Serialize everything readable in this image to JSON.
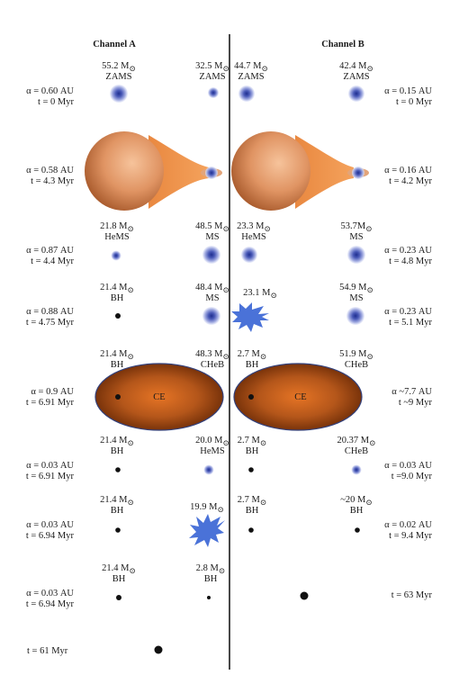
{
  "channels": [
    {
      "header": "Channel A",
      "stages": [
        {
          "params_a": "α = 0.60 AU",
          "params_t": "t = 0 Myr",
          "star1": {
            "mass": "55.2 M",
            "type": "ZAMS"
          },
          "star2": {
            "mass": "32.5 M",
            "type": "ZAMS"
          }
        },
        {
          "params_a": "α = 0.58 AU",
          "params_t": "t = 4.3 Myr"
        },
        {
          "params_a": "α = 0.87 AU",
          "params_t": "t = 4.4 Myr",
          "star1": {
            "mass": "21.8 M",
            "type": "HeMS"
          },
          "star2": {
            "mass": "48.5 M",
            "type": "MS"
          }
        },
        {
          "params_a": "α = 0.88 AU",
          "params_t": "t = 4.75 Myr",
          "star1": {
            "mass": "21.4 M",
            "type": "BH"
          },
          "star2": {
            "mass": "48.4 M",
            "type": "MS"
          }
        },
        {
          "params_a": "α = 0.9 AU",
          "params_t": "t = 6.91 Myr",
          "star1": {
            "mass": "21.4 M",
            "type": "BH"
          },
          "star2": {
            "mass": "48.3 M",
            "type": "CHeB"
          },
          "ce": "CE"
        },
        {
          "params_a": "α = 0.03 AU",
          "params_t": "t = 6.91 Myr",
          "star1": {
            "mass": "21.4 M",
            "type": "BH"
          },
          "star2": {
            "mass": "20.0 M",
            "type": "HeMS"
          }
        },
        {
          "params_a": "α = 0.03 AU",
          "params_t": "t = 6.94 Myr",
          "star1": {
            "mass": "21.4 M",
            "type": "BH"
          },
          "star2": {
            "mass": "19.9 M",
            "type": ""
          }
        },
        {
          "params_a": "α = 0.03 AU",
          "params_t": "t = 6.94 Myr",
          "star1": {
            "mass": "21.4 M",
            "type": "BH"
          },
          "star2": {
            "mass": "2.8 M",
            "type": "BH"
          }
        },
        {
          "params_t": "t = 61 Myr"
        }
      ]
    },
    {
      "header": "Channel B",
      "stages": [
        {
          "params_a": "α = 0.15 AU",
          "params_t": "t = 0 Myr",
          "star1": {
            "mass": "44.7 M",
            "type": "ZAMS"
          },
          "star2": {
            "mass": "42.4 M",
            "type": "ZAMS"
          }
        },
        {
          "params_a": "α = 0.16 AU",
          "params_t": "t = 4.2 Myr"
        },
        {
          "params_a": "α = 0.23 AU",
          "params_t": "t = 4.8 Myr",
          "star1": {
            "mass": "23.3 M",
            "type": "HeMS"
          },
          "star2": {
            "mass": "53.7M",
            "type": "MS"
          }
        },
        {
          "params_a": "α = 0.23 AU",
          "params_t": "t = 5.1 Myr",
          "star1": {
            "mass": "23.1 M",
            "type": ""
          },
          "star2": {
            "mass": "54.9 M",
            "type": "MS"
          }
        },
        {
          "params_a": "α ~7.7 AU",
          "params_t": "t ~9 Myr",
          "star1": {
            "mass": "2.7 M",
            "type": "BH"
          },
          "star2": {
            "mass": "51.9 M",
            "type": "CHeB"
          },
          "ce": "CE"
        },
        {
          "params_a": "α = 0.03 AU",
          "params_t": "t =9.0 Myr",
          "star1": {
            "mass": "2.7 M",
            "type": "BH"
          },
          "star2": {
            "mass": "20.37 M",
            "type": "CHeB"
          }
        },
        {
          "params_a": "α = 0.02 AU",
          "params_t": "t = 9.4 Myr",
          "star1": {
            "mass": "2.7 M",
            "type": "BH"
          },
          "star2": {
            "mass": "~20 M",
            "type": "BH"
          }
        },
        {
          "params_t": "t = 63 Myr"
        }
      ]
    }
  ],
  "solar_symbol": "⊙",
  "colors": {
    "divider": "#1a1a1a",
    "star_core": "#1f2f8f",
    "star_glow": "#c9cff0",
    "donor_light": "#f2b184",
    "donor_dark": "#b5632c",
    "stream": "#ee8a3c",
    "ce_inner": "#e06a1c",
    "ce_outer": "#7a3208",
    "ce_border": "#33407a",
    "burst": "#4a72d8",
    "bh": "#111111"
  }
}
